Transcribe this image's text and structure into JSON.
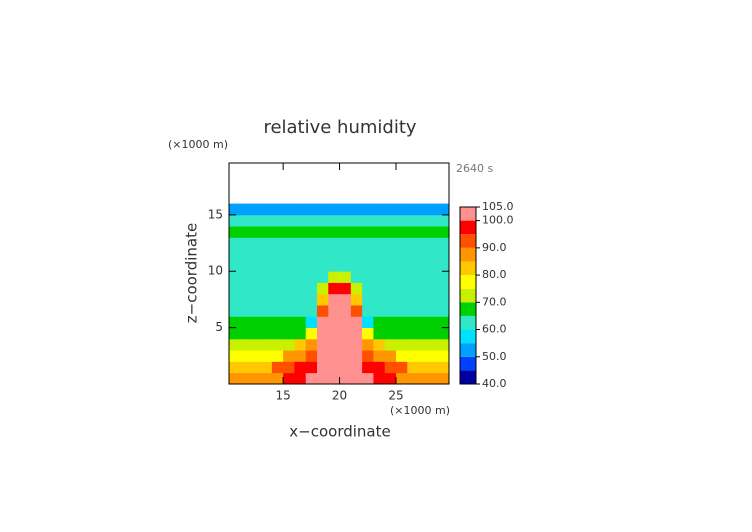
{
  "chart_data": {
    "type": "contour",
    "title": "relative humidity",
    "x_label": "x−coordinate",
    "y_label": "z−coordinate",
    "x_unit": "(×1000 m)",
    "y_unit": "(×1000 m)",
    "annotation": "2640 s",
    "xlim": [
      10.2,
      29.7
    ],
    "ylim": [
      0,
      19.6
    ],
    "xticks": [
      15,
      20,
      25
    ],
    "yticks": [
      5,
      10,
      15
    ],
    "x": [
      10.5,
      11.5,
      12.5,
      13.5,
      14.5,
      15.5,
      16.5,
      17.5,
      18.5,
      19.5,
      20.5,
      21.5,
      22.5,
      23.5,
      24.5,
      25.5,
      26.5,
      27.5,
      28.5,
      29.5
    ],
    "y": [
      0.5,
      1.5,
      2.5,
      3.5,
      4.5,
      5.5,
      6.5,
      7.5,
      8.5,
      9.5,
      10.5,
      11.5,
      12.5,
      13.5,
      14.5,
      15.5
    ],
    "z": [
      [
        88,
        88,
        88,
        88,
        88,
        95,
        95,
        100,
        102,
        102,
        102,
        102,
        100,
        95,
        95,
        88,
        88,
        88,
        88,
        88
      ],
      [
        84,
        84,
        84,
        84,
        90,
        90,
        95,
        95,
        102,
        102,
        102,
        102,
        95,
        95,
        90,
        90,
        84,
        84,
        84,
        84
      ],
      [
        78,
        78,
        78,
        78,
        78,
        85,
        85,
        92,
        101,
        101,
        101,
        101,
        92,
        85,
        85,
        78,
        78,
        78,
        78,
        78
      ],
      [
        72,
        72,
        72,
        72,
        72,
        72,
        80,
        88,
        101,
        101,
        101,
        101,
        88,
        80,
        72,
        72,
        72,
        72,
        72,
        72
      ],
      [
        67,
        67,
        67,
        67,
        67,
        67,
        67,
        75,
        101,
        101,
        101,
        101,
        75,
        67,
        67,
        67,
        67,
        67,
        67,
        67
      ],
      [
        66,
        66,
        66,
        66,
        66,
        66,
        66,
        56,
        101,
        101,
        101,
        101,
        56,
        66,
        66,
        66,
        66,
        66,
        66,
        66
      ],
      [
        62,
        62,
        62,
        62,
        62,
        62,
        62,
        62,
        90,
        101,
        101,
        90,
        62,
        62,
        62,
        62,
        62,
        62,
        62,
        62
      ],
      [
        62,
        62,
        62,
        62,
        62,
        62,
        62,
        62,
        80,
        101,
        101,
        80,
        62,
        62,
        62,
        62,
        62,
        62,
        62,
        62
      ],
      [
        62,
        62,
        62,
        62,
        62,
        62,
        62,
        62,
        70,
        95,
        95,
        70,
        62,
        62,
        62,
        62,
        62,
        62,
        62,
        62
      ],
      [
        62,
        62,
        62,
        62,
        62,
        62,
        62,
        62,
        62,
        70,
        70,
        62,
        62,
        62,
        62,
        62,
        62,
        62,
        62,
        62
      ],
      [
        62,
        62,
        62,
        62,
        62,
        62,
        62,
        62,
        62,
        62,
        62,
        62,
        62,
        62,
        62,
        62,
        62,
        62,
        62,
        62
      ],
      [
        62,
        62,
        62,
        62,
        62,
        62,
        62,
        62,
        62,
        62,
        62,
        62,
        62,
        62,
        62,
        62,
        62,
        62,
        62,
        62
      ],
      [
        63,
        63,
        63,
        63,
        63,
        63,
        63,
        63,
        63,
        63,
        63,
        63,
        63,
        63,
        63,
        63,
        63,
        63,
        63,
        63
      ],
      [
        67,
        67,
        67,
        67,
        67,
        67,
        67,
        67,
        67,
        67,
        67,
        67,
        67,
        67,
        67,
        67,
        67,
        67,
        67,
        67
      ],
      [
        64,
        64,
        64,
        64,
        64,
        64,
        64,
        64,
        64,
        64,
        64,
        64,
        64,
        64,
        64,
        64,
        64,
        64,
        64,
        64
      ],
      [
        50,
        50,
        50,
        50,
        50,
        50,
        50,
        50,
        50,
        50,
        50,
        50,
        50,
        50,
        50,
        50,
        50,
        50,
        50,
        50
      ]
    ],
    "colorbar": {
      "levels": [
        40,
        45,
        50,
        55,
        60,
        65,
        70,
        75,
        80,
        85,
        90,
        95,
        100,
        105
      ],
      "colors": [
        "#0000a0",
        "#0040ff",
        "#00a0ff",
        "#00e0ff",
        "#30e8c8",
        "#00d000",
        "#c8f000",
        "#ffff00",
        "#ffc800",
        "#ff9600",
        "#ff5000",
        "#ff0000",
        "#ff9090"
      ],
      "ticks": [
        {
          "value": 40,
          "label": "40.0"
        },
        {
          "value": 50,
          "label": "50.0"
        },
        {
          "value": 60,
          "label": "60.0"
        },
        {
          "value": 70,
          "label": "70.0"
        },
        {
          "value": 80,
          "label": "80.0"
        },
        {
          "value": 90,
          "label": "90.0"
        },
        {
          "value": 100,
          "label": "100.0"
        },
        {
          "value": 105,
          "label": "105.0"
        }
      ]
    }
  }
}
